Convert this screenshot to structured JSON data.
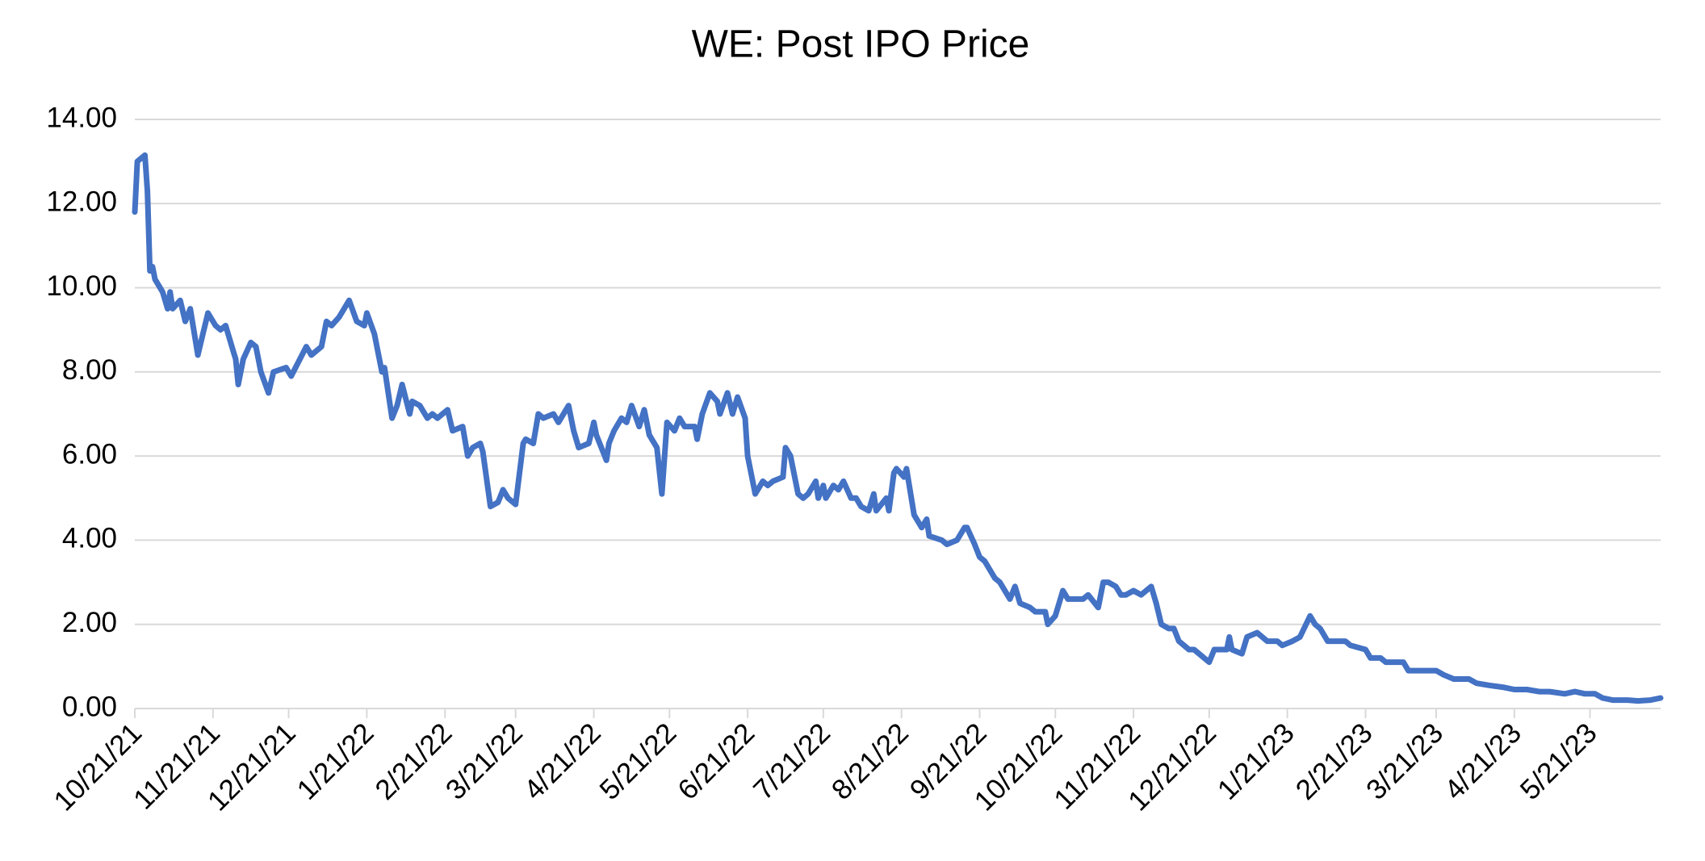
{
  "chart_data": {
    "type": "line",
    "title": "WE: Post IPO Price",
    "color": "#4472c4",
    "grid": true,
    "x": [
      "10/21/21",
      "10/22/21",
      "10/25/21",
      "10/26/21",
      "10/27/21",
      "10/28/21",
      "10/29/21",
      "11/1/21",
      "11/3/21",
      "11/4/21",
      "11/5/21",
      "11/8/21",
      "11/10/21",
      "11/12/21",
      "11/15/21",
      "11/17/21",
      "11/19/21",
      "11/22/21",
      "11/24/21",
      "11/26/21",
      "11/29/21",
      "11/30/21",
      "12/1/21",
      "12/3/21",
      "12/6/21",
      "12/8/21",
      "12/10/21",
      "12/13/21",
      "12/15/21",
      "12/20/21",
      "12/22/21",
      "12/28/21",
      "12/30/21",
      "1/3/22",
      "1/5/22",
      "1/7/22",
      "1/10/22",
      "1/14/22",
      "1/17/22",
      "1/20/22",
      "1/21/22",
      "1/24/22",
      "1/27/22",
      "1/28/22",
      "1/31/22",
      "2/2/22",
      "2/4/22",
      "2/7/22",
      "2/8/22",
      "2/11/22",
      "2/14/22",
      "2/16/22",
      "2/18/22",
      "2/22/22",
      "2/24/22",
      "2/28/22",
      "3/2/22",
      "3/4/22",
      "3/7/22",
      "3/8/22",
      "3/11/22",
      "3/14/22",
      "3/16/22",
      "3/18/22",
      "3/21/22",
      "3/24/22",
      "3/25/22",
      "3/28/22",
      "3/30/22",
      "4/1/22",
      "4/5/22",
      "4/7/22",
      "4/11/22",
      "4/13/22",
      "4/15/22",
      "4/19/22",
      "4/21/22",
      "4/22/22",
      "4/26/22",
      "4/27/22",
      "4/29/22",
      "5/2/22",
      "5/4/22",
      "5/6/22",
      "5/9/22",
      "5/11/22",
      "5/13/22",
      "5/16/22",
      "5/18/22",
      "5/20/22",
      "5/23/22",
      "5/25/22",
      "5/27/22",
      "5/31/22",
      "6/1/22",
      "6/3/22",
      "6/6/22",
      "6/9/22",
      "6/10/22",
      "6/13/22",
      "6/15/22",
      "6/17/22",
      "6/20/22",
      "6/21/22",
      "6/24/22",
      "6/27/22",
      "6/29/22",
      "7/1/22",
      "7/5/22",
      "7/6/22",
      "7/8/22",
      "7/11/22",
      "7/13/22",
      "7/15/22",
      "7/18/22",
      "7/19/22",
      "7/21/22",
      "7/22/22",
      "7/25/22",
      "7/27/22",
      "7/29/22",
      "8/1/22",
      "8/3/22",
      "8/5/22",
      "8/8/22",
      "8/10/22",
      "8/11/22",
      "8/15/22",
      "8/16/22",
      "8/18/22",
      "8/19/22",
      "8/22/22",
      "8/23/22",
      "8/26/22",
      "8/29/22",
      "8/31/22",
      "9/1/22",
      "9/6/22",
      "9/8/22",
      "9/12/22",
      "9/15/22",
      "9/16/22",
      "9/19/22",
      "9/21/22",
      "9/23/22",
      "9/27/22",
      "9/29/22",
      "10/3/22",
      "10/5/22",
      "10/7/22",
      "10/11/22",
      "10/13/22",
      "10/17/22",
      "10/18/22",
      "10/21/22",
      "10/24/22",
      "10/26/22",
      "10/28/22",
      "11/1/22",
      "11/3/22",
      "11/7/22",
      "11/9/22",
      "11/11/22",
      "11/14/22",
      "11/16/22",
      "11/18/22",
      "11/21/22",
      "11/24/22",
      "11/28/22",
      "11/30/22",
      "12/2/22",
      "12/5/22",
      "12/7/22",
      "12/9/22",
      "12/13/22",
      "12/15/22",
      "12/19/22",
      "12/21/22",
      "12/23/22",
      "12/28/22",
      "12/29/22",
      "12/30/22",
      "1/3/23",
      "1/5/23",
      "1/9/23",
      "1/13/23",
      "1/17/23",
      "1/19/23",
      "1/23/23",
      "1/26/23",
      "1/30/23",
      "2/1/23",
      "2/3/23",
      "2/6/23",
      "2/10/23",
      "2/13/23",
      "2/15/23",
      "2/21/23",
      "2/23/23",
      "2/27/23",
      "3/1/23",
      "3/6/23",
      "3/8/23",
      "3/10/23",
      "3/14/23",
      "3/17/23",
      "3/21/23",
      "3/24/23",
      "3/28/23",
      "4/3/23",
      "4/6/23",
      "4/11/23",
      "4/17/23",
      "4/21/23",
      "4/26/23",
      "5/1/23",
      "5/5/23",
      "5/11/23",
      "5/15/23",
      "5/19/23",
      "5/23/23",
      "5/26/23",
      "5/30/23",
      "6/5/23",
      "6/9/23",
      "6/14/23",
      "6/18/23"
    ],
    "values": [
      11.8,
      13.0,
      13.15,
      12.3,
      10.4,
      10.5,
      10.2,
      9.9,
      9.5,
      9.9,
      9.5,
      9.7,
      9.2,
      9.5,
      8.4,
      8.9,
      9.4,
      9.1,
      9.0,
      9.1,
      8.5,
      8.3,
      7.7,
      8.3,
      8.7,
      8.6,
      8.0,
      7.5,
      8.0,
      8.1,
      7.9,
      8.6,
      8.4,
      8.6,
      9.2,
      9.1,
      9.3,
      9.7,
      9.2,
      9.1,
      9.4,
      8.9,
      8.0,
      8.1,
      6.9,
      7.2,
      7.7,
      7.0,
      7.3,
      7.2,
      6.9,
      7.0,
      6.9,
      7.1,
      6.6,
      6.7,
      6.0,
      6.2,
      6.3,
      6.1,
      4.8,
      4.9,
      5.2,
      5.0,
      4.85,
      6.3,
      6.4,
      6.3,
      7.0,
      6.9,
      7.0,
      6.8,
      7.2,
      6.6,
      6.2,
      6.3,
      6.8,
      6.5,
      5.9,
      6.3,
      6.6,
      6.9,
      6.8,
      7.2,
      6.7,
      7.1,
      6.5,
      6.2,
      5.1,
      6.8,
      6.6,
      6.9,
      6.7,
      6.7,
      6.4,
      7.0,
      7.5,
      7.3,
      7.0,
      7.5,
      7.0,
      7.4,
      6.9,
      6.0,
      5.1,
      5.4,
      5.3,
      5.4,
      5.5,
      6.2,
      6.0,
      5.1,
      5.0,
      5.1,
      5.4,
      5.0,
      5.3,
      5.0,
      5.3,
      5.2,
      5.4,
      5.0,
      5.0,
      4.8,
      4.7,
      5.1,
      4.7,
      5.0,
      4.7,
      5.6,
      5.7,
      5.5,
      5.7,
      4.6,
      4.3,
      4.5,
      4.1,
      4.0,
      3.9,
      4.0,
      4.3,
      4.3,
      3.9,
      3.6,
      3.5,
      3.1,
      3.0,
      2.6,
      2.9,
      2.5,
      2.4,
      2.3,
      2.3,
      2.0,
      2.2,
      2.8,
      2.6,
      2.6,
      2.6,
      2.7,
      2.4,
      3.0,
      3.0,
      2.9,
      2.7,
      2.7,
      2.8,
      2.7,
      2.9,
      2.5,
      2.0,
      1.9,
      1.9,
      1.6,
      1.4,
      1.4,
      1.2,
      1.1,
      1.4,
      1.4,
      1.7,
      1.4,
      1.3,
      1.7,
      1.8,
      1.6,
      1.6,
      1.5,
      1.6,
      1.7,
      2.2,
      2.0,
      1.9,
      1.6,
      1.6,
      1.6,
      1.5,
      1.4,
      1.2,
      1.2,
      1.1,
      1.1,
      1.1,
      0.9,
      0.9,
      0.9,
      0.9,
      0.8,
      0.7,
      0.7,
      0.6,
      0.55,
      0.5,
      0.45,
      0.45,
      0.4,
      0.4,
      0.35,
      0.4,
      0.35,
      0.35,
      0.25,
      0.2,
      0.2,
      0.18,
      0.2,
      0.25
    ],
    "xlim": [
      "10/21/21",
      "6/18/23"
    ],
    "xticks": [
      "10/21/21",
      "11/21/21",
      "12/21/21",
      "1/21/22",
      "2/21/22",
      "3/21/22",
      "4/21/22",
      "5/21/22",
      "6/21/22",
      "7/21/22",
      "8/21/22",
      "9/21/22",
      "10/21/22",
      "11/21/22",
      "12/21/22",
      "1/21/23",
      "2/21/23",
      "3/21/23",
      "4/21/23",
      "5/21/23"
    ],
    "ylim": [
      0,
      14
    ],
    "yticks": [
      {
        "value": 0,
        "label": "0.00"
      },
      {
        "value": 2,
        "label": "2.00"
      },
      {
        "value": 4,
        "label": "4.00"
      },
      {
        "value": 6,
        "label": "6.00"
      },
      {
        "value": 8,
        "label": "8.00"
      },
      {
        "value": 10,
        "label": "10.00"
      },
      {
        "value": 12,
        "label": "12.00"
      },
      {
        "value": 14,
        "label": "14.00"
      }
    ]
  }
}
